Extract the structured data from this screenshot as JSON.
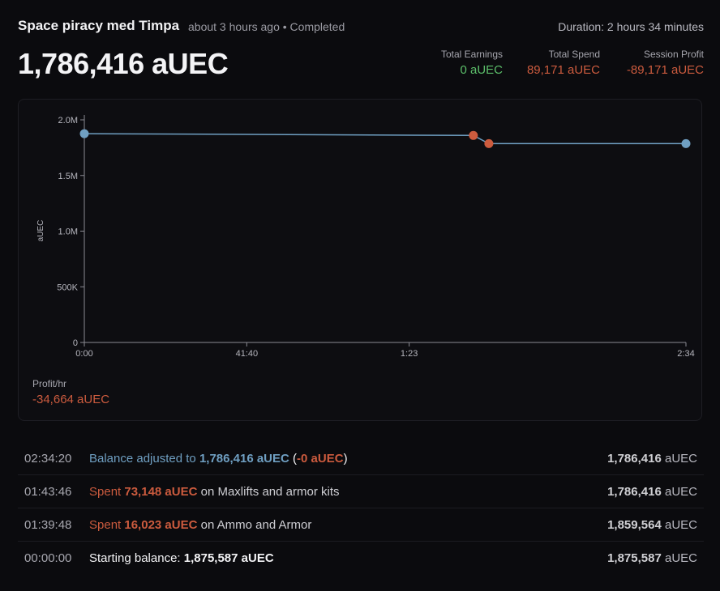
{
  "session": {
    "title": "Space piracy med Timpa",
    "meta": "about 3 hours ago • Completed",
    "duration": "Duration: 2 hours 34 minutes",
    "balance": "1,786,416 aUEC"
  },
  "stats": [
    {
      "label": "Total Earnings",
      "value": "0 aUEC",
      "color": "#5cbf6a"
    },
    {
      "label": "Total Spend",
      "value": "89,171 aUEC",
      "color": "#cc5b3e"
    },
    {
      "label": "Session Profit",
      "value": "-89,171 aUEC",
      "color": "#cc5b3e"
    }
  ],
  "chart_data": {
    "type": "line",
    "ylabel": "aUEC",
    "xlabel": "",
    "y_ticks": [
      "0",
      "500K",
      "1.0M",
      "1.5M",
      "2.0M"
    ],
    "y_tick_values": [
      0,
      500000,
      1000000,
      1500000,
      2000000
    ],
    "x_ticks": [
      "0:00",
      "41:40",
      "1:23",
      "2:34"
    ],
    "x_tick_minutes": [
      0,
      41.67,
      83.33,
      154.33
    ],
    "ylim": [
      0,
      2000000
    ],
    "xlim_minutes": [
      0,
      154.33
    ],
    "points": [
      {
        "t": 0,
        "y": 1875587,
        "kind": "start"
      },
      {
        "t": 99.8,
        "y": 1859564,
        "kind": "spend"
      },
      {
        "t": 103.77,
        "y": 1786416,
        "kind": "spend"
      },
      {
        "t": 154.33,
        "y": 1786416,
        "kind": "adjust"
      }
    ],
    "line_color": "#6f9fc2",
    "spend_color": "#cc5b3e",
    "grid": false
  },
  "profit_hr": {
    "label": "Profit/hr",
    "value": "-34,664 aUEC"
  },
  "log": [
    {
      "time": "02:34:20",
      "parts": [
        {
          "text": "Balance adjusted to ",
          "cls": "blue"
        },
        {
          "text": "1,786,416 aUEC",
          "cls": "blue",
          "bold": true
        },
        {
          "text": " (",
          "cls": "white"
        },
        {
          "text": "-0 aUEC",
          "cls": "red",
          "bold": true
        },
        {
          "text": ")",
          "cls": "white"
        }
      ],
      "balance": "1,786,416",
      "unit": " aUEC"
    },
    {
      "time": "01:43:46",
      "parts": [
        {
          "text": "Spent ",
          "cls": "red"
        },
        {
          "text": "73,148 aUEC",
          "cls": "red",
          "bold": true
        },
        {
          "text": " on Maxlifts and armor kits",
          "cls": ""
        }
      ],
      "balance": "1,786,416",
      "unit": " aUEC"
    },
    {
      "time": "01:39:48",
      "parts": [
        {
          "text": "Spent ",
          "cls": "red"
        },
        {
          "text": "16,023 aUEC",
          "cls": "red",
          "bold": true
        },
        {
          "text": " on Ammo and Armor",
          "cls": ""
        }
      ],
      "balance": "1,859,564",
      "unit": " aUEC"
    },
    {
      "time": "00:00:00",
      "parts": [
        {
          "text": "Starting balance: ",
          "cls": "white"
        },
        {
          "text": "1,875,587 aUEC",
          "cls": "white",
          "bold": true
        }
      ],
      "balance": "1,875,587",
      "unit": " aUEC"
    }
  ]
}
